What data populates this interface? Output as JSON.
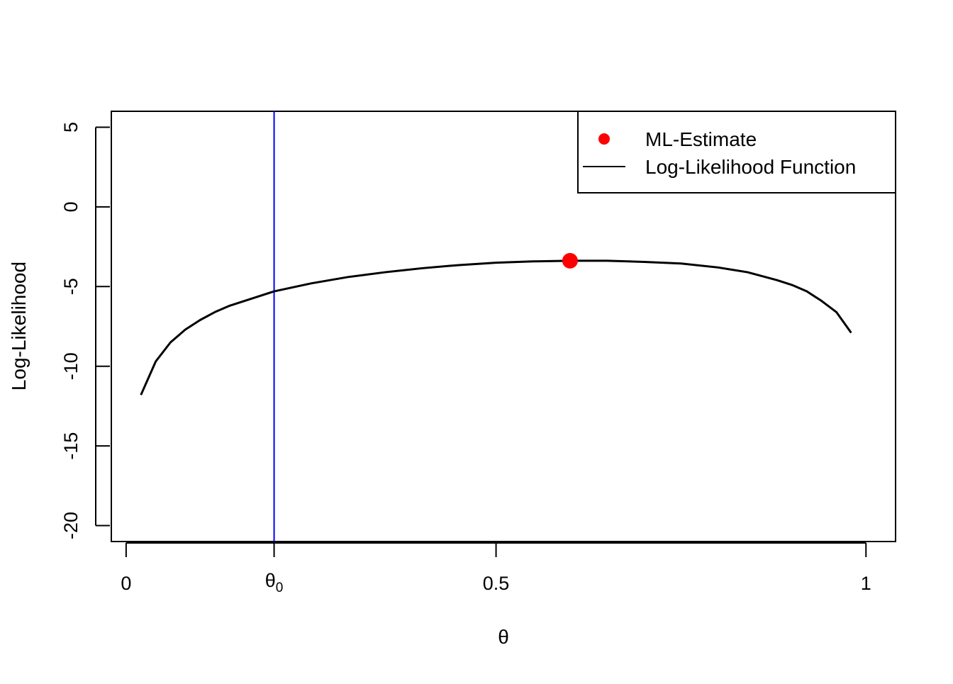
{
  "chart_data": {
    "type": "line",
    "xlabel": "θ",
    "ylabel": "Log-Likelihood",
    "xlim": [
      -0.02,
      1.04
    ],
    "ylim": [
      -21,
      6
    ],
    "x_ticks": [
      {
        "value": 0,
        "label": "0"
      },
      {
        "value": 0.5,
        "label": "0.5"
      },
      {
        "value": 1,
        "label": "1"
      }
    ],
    "theta0": {
      "value": 0.2,
      "label_main": "θ",
      "label_sub": "0",
      "color": "#0000ff"
    },
    "y_ticks": [
      {
        "value": 5,
        "label": "5"
      },
      {
        "value": 0,
        "label": "0"
      },
      {
        "value": -5,
        "label": "-5"
      },
      {
        "value": -10,
        "label": "-10"
      },
      {
        "value": -15,
        "label": "-15"
      },
      {
        "value": -20,
        "label": "-20"
      }
    ],
    "series": [
      {
        "name": "Log-Likelihood Function",
        "color": "#000000",
        "x": [
          0.02,
          0.04,
          0.06,
          0.08,
          0.1,
          0.12,
          0.14,
          0.16,
          0.18,
          0.2,
          0.25,
          0.3,
          0.35,
          0.4,
          0.45,
          0.5,
          0.55,
          0.6,
          0.65,
          0.7,
          0.75,
          0.8,
          0.84,
          0.88,
          0.9,
          0.92,
          0.94,
          0.96,
          0.98
        ],
        "y": [
          -11.8,
          -9.7,
          -8.5,
          -7.7,
          -7.1,
          -6.6,
          -6.2,
          -5.9,
          -5.6,
          -5.3,
          -4.8,
          -4.4,
          -4.1,
          -3.85,
          -3.65,
          -3.5,
          -3.42,
          -3.38,
          -3.38,
          -3.45,
          -3.55,
          -3.8,
          -4.1,
          -4.6,
          -4.9,
          -5.3,
          -5.9,
          -6.6,
          -7.9
        ]
      }
    ],
    "ml_estimate": {
      "name": "ML-Estimate",
      "x": 0.6,
      "y": -3.38,
      "color": "#ff0000"
    },
    "legend": {
      "position": "top-right",
      "entries": [
        {
          "label": "ML-Estimate",
          "symbol": "point",
          "color": "#ff0000"
        },
        {
          "label": "Log-Likelihood Function",
          "symbol": "line",
          "color": "#000000"
        }
      ]
    }
  }
}
